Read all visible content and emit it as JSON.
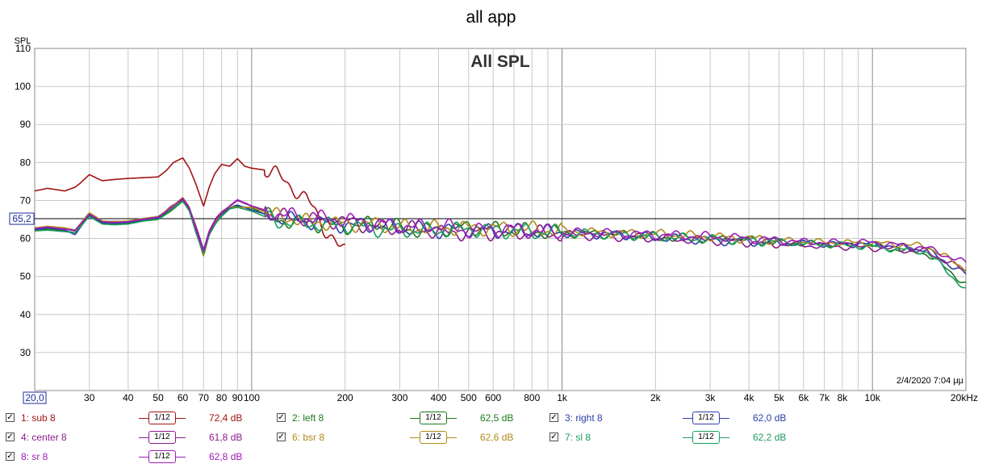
{
  "window_title": "all app",
  "chart_data": {
    "type": "line",
    "title": "All SPL",
    "ylabel": "SPL",
    "ylim": [
      20,
      110
    ],
    "xlim": [
      20,
      20000
    ],
    "x_scale": "log",
    "y_ticks": [
      30,
      40,
      50,
      60,
      70,
      80,
      90,
      100,
      110
    ],
    "x_ticks": [
      {
        "value": 20,
        "label": "20,0"
      },
      {
        "value": 30,
        "label": "30"
      },
      {
        "value": 40,
        "label": "40"
      },
      {
        "value": 50,
        "label": "50"
      },
      {
        "value": 60,
        "label": "60"
      },
      {
        "value": 70,
        "label": "70"
      },
      {
        "value": 80,
        "label": "80"
      },
      {
        "value": 90,
        "label": "90"
      },
      {
        "value": 100,
        "label": "100"
      },
      {
        "value": 200,
        "label": "200"
      },
      {
        "value": 300,
        "label": "300"
      },
      {
        "value": 400,
        "label": "400"
      },
      {
        "value": 500,
        "label": "500"
      },
      {
        "value": 600,
        "label": "600"
      },
      {
        "value": 800,
        "label": "800"
      },
      {
        "value": 1000,
        "label": "1k"
      },
      {
        "value": 2000,
        "label": "2k"
      },
      {
        "value": 3000,
        "label": "3k"
      },
      {
        "value": 4000,
        "label": "4k"
      },
      {
        "value": 5000,
        "label": "5k"
      },
      {
        "value": 6000,
        "label": "6k"
      },
      {
        "value": 7000,
        "label": "7k"
      },
      {
        "value": 8000,
        "label": "8k"
      },
      {
        "value": 10000,
        "label": "10k"
      },
      {
        "value": 20000,
        "label": "20kHz"
      }
    ],
    "reference_line": {
      "value": 65.2,
      "label": "65,2"
    },
    "timestamp": "2/4/2020 7:04 μμ",
    "grid": true,
    "series": [
      {
        "name": "1: sub 8",
        "color": "#a01414",
        "smoothing": "1/12",
        "level": "72,4 dB",
        "x": [
          20,
          22,
          25,
          27,
          28,
          30,
          33,
          37,
          40,
          45,
          50,
          53,
          56,
          60,
          63,
          66,
          70,
          73,
          76,
          80,
          85,
          90,
          95,
          100,
          110,
          120,
          130,
          140,
          150,
          160,
          170,
          180,
          190,
          200
        ],
        "y": [
          72.5,
          73.2,
          72.5,
          73.5,
          74.5,
          76.8,
          75.2,
          75.6,
          75.8,
          76.0,
          76.2,
          77.8,
          80.0,
          81.2,
          78.5,
          74.5,
          68.5,
          73.5,
          77.0,
          79.5,
          79.0,
          81.0,
          79.0,
          78.5,
          78.0,
          77.0,
          74.5,
          72.5,
          70.5,
          67.0,
          63.0,
          61.0,
          58.0,
          56.5
        ]
      },
      {
        "name": "2: left 8",
        "color": "#1c7a1c",
        "smoothing": "1/12",
        "level": "62,5 dB",
        "x": [
          20,
          22,
          25,
          27,
          30,
          33,
          36,
          40,
          45,
          50,
          55,
          60,
          63,
          66,
          70,
          73,
          77,
          80,
          85,
          90,
          100,
          120,
          150,
          200,
          250,
          300,
          350,
          400,
          500,
          600,
          700,
          800,
          1000,
          1500,
          2000,
          3000,
          4000,
          5000,
          7000,
          10000,
          15000,
          20000
        ],
        "y": [
          62.0,
          62.5,
          62.0,
          61.5,
          66.0,
          64.0,
          63.8,
          64.0,
          64.8,
          65.2,
          67.5,
          70.0,
          67.5,
          62.0,
          55.5,
          61.0,
          64.5,
          66.0,
          68.0,
          68.5,
          68.0,
          65.0,
          64.0,
          63.0,
          64.0,
          63.0,
          62.0,
          62.5,
          63.0,
          62.5,
          62.0,
          62.0,
          61.5,
          61.0,
          60.5,
          60.0,
          59.5,
          59.0,
          58.5,
          58.0,
          56.0,
          48.0
        ]
      },
      {
        "name": "3: right 8",
        "color": "#2c3fa8",
        "smoothing": "1/12",
        "level": "62,0 dB",
        "x": [
          20,
          22,
          25,
          27,
          30,
          33,
          36,
          40,
          45,
          50,
          55,
          60,
          63,
          66,
          70,
          73,
          77,
          80,
          85,
          90,
          100,
          120,
          150,
          200,
          250,
          300,
          350,
          400,
          500,
          600,
          700,
          800,
          1000,
          1500,
          2000,
          3000,
          4000,
          5000,
          7000,
          10000,
          15000,
          20000
        ],
        "y": [
          62.2,
          62.8,
          62.2,
          61.0,
          66.2,
          64.2,
          64.0,
          64.2,
          65.0,
          65.4,
          68.0,
          70.5,
          67.8,
          62.5,
          55.8,
          61.5,
          65.0,
          66.5,
          68.2,
          68.8,
          67.5,
          65.5,
          64.5,
          63.5,
          63.5,
          62.5,
          62.5,
          62.0,
          62.5,
          62.0,
          61.8,
          61.8,
          61.5,
          61.0,
          60.2,
          59.5,
          59.2,
          58.8,
          58.5,
          58.5,
          57.0,
          50.5
        ]
      },
      {
        "name": "4: center 8",
        "color": "#8c1c8c",
        "smoothing": "1/12",
        "level": "61,8 dB",
        "x": [
          20,
          22,
          25,
          27,
          30,
          33,
          36,
          40,
          45,
          50,
          55,
          60,
          63,
          66,
          70,
          73,
          77,
          80,
          85,
          90,
          100,
          120,
          150,
          200,
          250,
          300,
          350,
          400,
          500,
          600,
          700,
          800,
          1000,
          1500,
          2000,
          3000,
          4000,
          5000,
          7000,
          10000,
          15000,
          20000
        ],
        "y": [
          62.5,
          63.0,
          62.5,
          62.0,
          66.5,
          64.5,
          64.5,
          64.5,
          65.2,
          65.5,
          68.5,
          70.2,
          68.0,
          63.5,
          57.0,
          62.0,
          65.5,
          67.0,
          68.5,
          70.0,
          68.5,
          66.0,
          65.0,
          64.5,
          63.0,
          62.5,
          62.5,
          61.5,
          61.5,
          61.5,
          61.5,
          61.5,
          61.0,
          60.5,
          60.0,
          59.5,
          59.0,
          58.5,
          58.0,
          57.5,
          56.5,
          51.5
        ]
      },
      {
        "name": "6: bsr 8",
        "color": "#b08a1c",
        "smoothing": "1/12",
        "level": "62,6 dB",
        "x": [
          20,
          22,
          25,
          27,
          30,
          33,
          36,
          40,
          45,
          50,
          55,
          60,
          63,
          66,
          70,
          73,
          77,
          80,
          85,
          90,
          100,
          120,
          150,
          200,
          250,
          300,
          350,
          400,
          500,
          600,
          700,
          800,
          1000,
          1500,
          2000,
          3000,
          4000,
          5000,
          7000,
          10000,
          15000,
          20000
        ],
        "y": [
          62.8,
          63.2,
          62.8,
          62.2,
          66.8,
          64.6,
          64.4,
          64.6,
          65.3,
          65.8,
          68.2,
          70.8,
          68.2,
          62.8,
          55.2,
          61.2,
          64.8,
          66.8,
          68.4,
          68.2,
          68.2,
          66.0,
          64.5,
          63.8,
          63.8,
          63.0,
          62.8,
          62.8,
          62.8,
          62.8,
          62.5,
          62.5,
          62.0,
          61.5,
          61.2,
          60.5,
          60.0,
          59.5,
          59.0,
          58.8,
          58.0,
          52.0
        ]
      },
      {
        "name": "7: sl 8",
        "color": "#1c9c5c",
        "smoothing": "1/12",
        "level": "62,2 dB",
        "x": [
          20,
          22,
          25,
          27,
          30,
          33,
          36,
          40,
          45,
          50,
          55,
          60,
          63,
          66,
          70,
          73,
          77,
          80,
          85,
          90,
          100,
          120,
          150,
          200,
          250,
          300,
          350,
          400,
          500,
          600,
          700,
          800,
          1000,
          1500,
          2000,
          3000,
          4000,
          5000,
          7000,
          10000,
          15000,
          20000
        ],
        "y": [
          62.0,
          62.2,
          61.8,
          61.5,
          65.8,
          63.8,
          63.6,
          63.8,
          64.6,
          65.0,
          67.2,
          69.8,
          67.2,
          61.8,
          55.8,
          61.0,
          64.2,
          65.8,
          67.8,
          68.2,
          67.2,
          64.5,
          63.8,
          63.5,
          62.5,
          62.0,
          62.2,
          62.0,
          62.5,
          62.2,
          62.0,
          61.8,
          61.5,
          61.0,
          60.5,
          59.8,
          59.5,
          59.0,
          58.5,
          57.8,
          56.5,
          46.5
        ]
      },
      {
        "name": "8: sr 8",
        "color": "#9c1cb8",
        "smoothing": "1/12",
        "level": "62,8 dB",
        "x": [
          20,
          22,
          25,
          27,
          30,
          33,
          36,
          40,
          45,
          50,
          55,
          60,
          63,
          66,
          70,
          73,
          77,
          80,
          85,
          90,
          100,
          120,
          150,
          200,
          250,
          300,
          350,
          400,
          500,
          600,
          700,
          800,
          1000,
          1500,
          2000,
          3000,
          4000,
          5000,
          7000,
          10000,
          15000,
          20000
        ],
        "y": [
          62.6,
          63.0,
          62.4,
          62.2,
          66.4,
          64.4,
          64.2,
          64.4,
          65.1,
          65.6,
          68.0,
          70.6,
          68.1,
          62.6,
          56.5,
          61.6,
          65.1,
          66.6,
          68.6,
          70.2,
          68.6,
          66.5,
          65.5,
          65.0,
          64.0,
          63.5,
          63.0,
          63.5,
          62.0,
          62.5,
          62.5,
          62.0,
          61.5,
          61.5,
          61.0,
          60.5,
          60.0,
          59.5,
          59.0,
          59.0,
          57.5,
          53.5
        ]
      }
    ]
  },
  "legend": [
    {
      "name": "1: sub 8",
      "checked": true,
      "smoothing": "1/12",
      "level": "72,4 dB",
      "color": "#a01414"
    },
    {
      "name": "2: left 8",
      "checked": true,
      "smoothing": "1/12",
      "level": "62,5 dB",
      "color": "#1c7a1c"
    },
    {
      "name": "3: right 8",
      "checked": true,
      "smoothing": "1/12",
      "level": "62,0 dB",
      "color": "#2c3fa8"
    },
    {
      "name": "4: center 8",
      "checked": true,
      "smoothing": "1/12",
      "level": "61,8 dB",
      "color": "#8c1c8c"
    },
    {
      "name": "6: bsr 8",
      "checked": true,
      "smoothing": "1/12",
      "level": "62,6 dB",
      "color": "#b08a1c"
    },
    {
      "name": "7: sl 8",
      "checked": true,
      "smoothing": "1/12",
      "level": "62,2 dB",
      "color": "#1c9c5c"
    },
    {
      "name": "8: sr 8",
      "checked": true,
      "smoothing": "1/12",
      "level": "62,8 dB",
      "color": "#9c1cb8"
    }
  ]
}
